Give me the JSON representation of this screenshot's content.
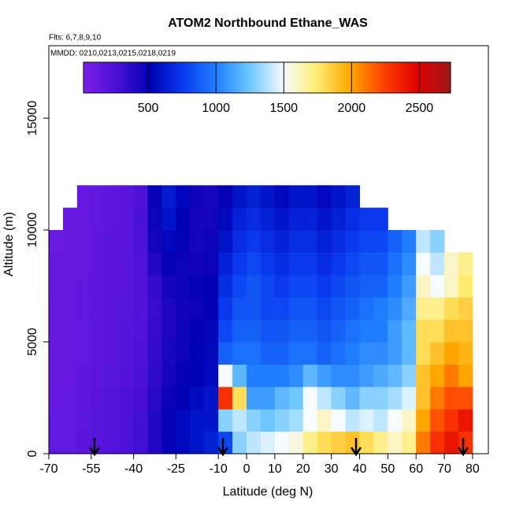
{
  "chart_data": {
    "type": "heatmap",
    "title": "ATOM2 Northbound Ethane_WAS",
    "annotations": [
      "Flts: 6,7,8,9,10",
      "MMDD: 0210,0213,0215,0218,0219"
    ],
    "xlabel": "Latitude (deg N)",
    "ylabel": "Altitude (m)",
    "xlim": [
      -70,
      85.6
    ],
    "ylim": [
      0,
      18240
    ],
    "xticks": [
      -70,
      -55,
      -40,
      -25,
      -10,
      0,
      10,
      20,
      30,
      40,
      50,
      60,
      70,
      80
    ],
    "yticks": [
      0,
      5000,
      10000,
      15000
    ],
    "clim": [
      23,
      2730
    ],
    "colorbar_ticks": [
      500,
      1000,
      1500,
      2000,
      2500
    ],
    "colors": [
      "#7a1ee6",
      "#4a10d8",
      "#0000b4",
      "#0a3cf0",
      "#2080ff",
      "#70c8ff",
      "#f5fbff",
      "#ffec70",
      "#ffa800",
      "#ff4000",
      "#e00000",
      "#a01818"
    ],
    "xbins": [
      -70,
      -65,
      -60,
      -55,
      -50,
      -45,
      -40,
      -35,
      -30,
      -25,
      -20,
      -15,
      -10,
      -5,
      0,
      5,
      10,
      15,
      20,
      25,
      30,
      35,
      40,
      45,
      50,
      55,
      60,
      65,
      70,
      75,
      80
    ],
    "ybins": [
      0,
      1000,
      2000,
      3000,
      4000,
      5000,
      6000,
      7000,
      8000,
      9000,
      10000,
      11000,
      12000
    ],
    "values": [
      [
        150,
        150,
        180,
        200,
        220,
        250,
        300,
        400,
        500,
        550,
        600,
        650,
        800,
        1300,
        1400,
        1450,
        1500,
        1550,
        1700,
        1800,
        1850,
        1900,
        1800,
        1700,
        1600,
        1700,
        2100,
        2300,
        2400,
        2300
      ],
      [
        150,
        150,
        170,
        200,
        220,
        250,
        300,
        400,
        500,
        550,
        600,
        600,
        1300,
        1400,
        1300,
        1250,
        1300,
        1350,
        1500,
        1600,
        1500,
        1400,
        1450,
        1400,
        1500,
        1600,
        2000,
        2200,
        2300,
        2400
      ],
      [
        140,
        150,
        160,
        190,
        220,
        250,
        280,
        380,
        480,
        520,
        560,
        600,
        2300,
        1800,
        1100,
        1100,
        1200,
        1250,
        1500,
        1400,
        1300,
        1200,
        1300,
        1300,
        1350,
        1450,
        1900,
        2100,
        2200,
        2200
      ],
      [
        140,
        140,
        160,
        180,
        200,
        230,
        260,
        360,
        450,
        500,
        520,
        560,
        1500,
        1200,
        1000,
        1000,
        1000,
        1050,
        1200,
        1100,
        1050,
        1050,
        1100,
        1150,
        1200,
        1300,
        1900,
        2000,
        2100,
        2000
      ],
      [
        130,
        140,
        150,
        170,
        190,
        220,
        250,
        350,
        430,
        480,
        520,
        550,
        900,
        950,
        950,
        900,
        900,
        950,
        950,
        900,
        950,
        1000,
        1050,
        1050,
        1100,
        1200,
        1800,
        1900,
        2000,
        1950
      ],
      [
        130,
        140,
        150,
        170,
        190,
        210,
        240,
        340,
        420,
        470,
        500,
        540,
        800,
        900,
        900,
        850,
        850,
        900,
        900,
        850,
        900,
        950,
        1000,
        1000,
        1100,
        1200,
        1800,
        1800,
        1900,
        1900
      ],
      [
        130,
        135,
        150,
        165,
        185,
        200,
        230,
        330,
        420,
        460,
        480,
        520,
        750,
        850,
        850,
        800,
        800,
        850,
        850,
        800,
        850,
        900,
        950,
        1000,
        1050,
        1150,
        1700,
        1700,
        1800,
        1850
      ],
      [
        120,
        130,
        145,
        160,
        180,
        200,
        230,
        350,
        450,
        480,
        500,
        520,
        700,
        800,
        850,
        800,
        750,
        800,
        800,
        750,
        800,
        850,
        900,
        900,
        1000,
        1100,
        1600,
        1500,
        1600,
        1750
      ],
      [
        120,
        130,
        140,
        160,
        180,
        200,
        240,
        400,
        500,
        480,
        460,
        480,
        650,
        750,
        800,
        750,
        700,
        750,
        750,
        700,
        750,
        800,
        850,
        850,
        950,
        1050,
        1500,
        1400,
        1600,
        1700
      ],
      [
        110,
        120,
        135,
        155,
        175,
        200,
        250,
        450,
        550,
        500,
        450,
        470,
        600,
        700,
        750,
        700,
        650,
        700,
        700,
        650,
        700,
        750,
        800,
        800,
        900,
        1000,
        1400,
        1300,
        null,
        null
      ],
      [
        null,
        115,
        130,
        150,
        170,
        200,
        260,
        480,
        600,
        520,
        450,
        450,
        550,
        650,
        700,
        650,
        600,
        650,
        650,
        600,
        650,
        700,
        750,
        750,
        null,
        null,
        null,
        null,
        null,
        null
      ],
      [
        null,
        null,
        125,
        145,
        165,
        190,
        250,
        500,
        620,
        540,
        460,
        440,
        500,
        600,
        650,
        600,
        550,
        600,
        600,
        550,
        600,
        650,
        null,
        null,
        null,
        null,
        null,
        null,
        null,
        null
      ]
    ]
  }
}
